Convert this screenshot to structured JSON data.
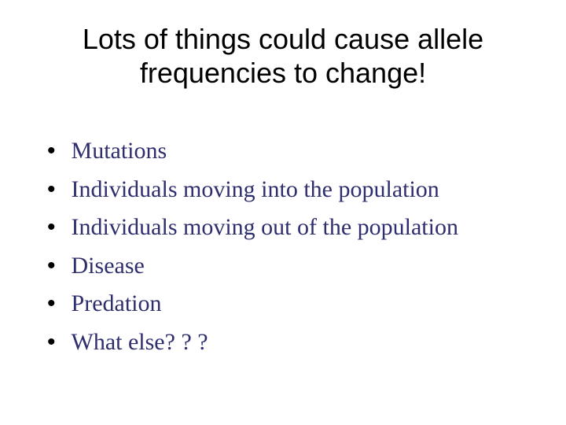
{
  "slide": {
    "title": "Lots of things could cause allele frequencies to change!",
    "title_color": "#000000",
    "title_fontsize": 36,
    "title_fontfamily": "Arial",
    "background_color": "#ffffff",
    "bullets": {
      "marker": "•",
      "marker_color": "#000000",
      "text_color": "#2e2e6e",
      "text_fontsize": 30,
      "text_fontfamily": "Times New Roman",
      "items": [
        "Mutations",
        "Individuals moving into the population",
        "Individuals moving out of the population",
        "Disease",
        "Predation",
        "What else? ? ?"
      ]
    }
  }
}
